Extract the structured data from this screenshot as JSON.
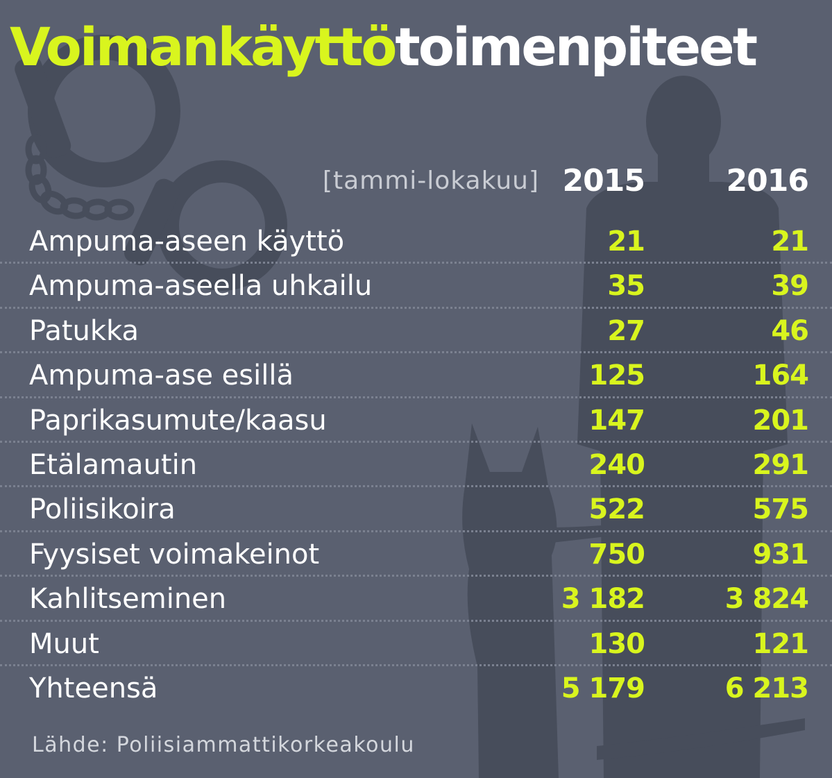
{
  "colors": {
    "background": "#5a6070",
    "silhouette": "#474d5b",
    "accent": "#d9f51e",
    "text": "#ffffff",
    "muted": "#c9ccd3"
  },
  "illustration": {
    "icons": [
      "handcuffs-icon",
      "police-officer-silhouette-icon",
      "police-dog-silhouette-icon"
    ]
  },
  "chart_data": {
    "type": "table",
    "title_part_highlight": "Voimankäyttö",
    "title_part_rest": "toimenpiteet",
    "period_label": "[tammi-lokakuu]",
    "columns": [
      "2015",
      "2016"
    ],
    "rows": [
      {
        "label": "Ampuma-aseen käyttö",
        "values": [
          "21",
          "21"
        ]
      },
      {
        "label": "Ampuma-aseella uhkailu",
        "values": [
          "35",
          "39"
        ]
      },
      {
        "label": "Patukka",
        "values": [
          "27",
          "46"
        ]
      },
      {
        "label": "Ampuma-ase esillä",
        "values": [
          "125",
          "164"
        ]
      },
      {
        "label": "Paprikasumute/kaasu",
        "values": [
          "147",
          "201"
        ]
      },
      {
        "label": "Etälamautin",
        "values": [
          "240",
          "291"
        ]
      },
      {
        "label": "Poliisikoira",
        "values": [
          "522",
          "575"
        ]
      },
      {
        "label": "Fyysiset voimakeinot",
        "values": [
          "750",
          "931"
        ]
      },
      {
        "label": "Kahlitseminen",
        "values": [
          "3 182",
          "3 824"
        ]
      },
      {
        "label": "Muut",
        "values": [
          "130",
          "121"
        ]
      },
      {
        "label": "Yhteensä",
        "values": [
          "5 179",
          "6 213"
        ]
      }
    ],
    "source": "Lähde: Poliisiammattikorkeakoulu"
  }
}
